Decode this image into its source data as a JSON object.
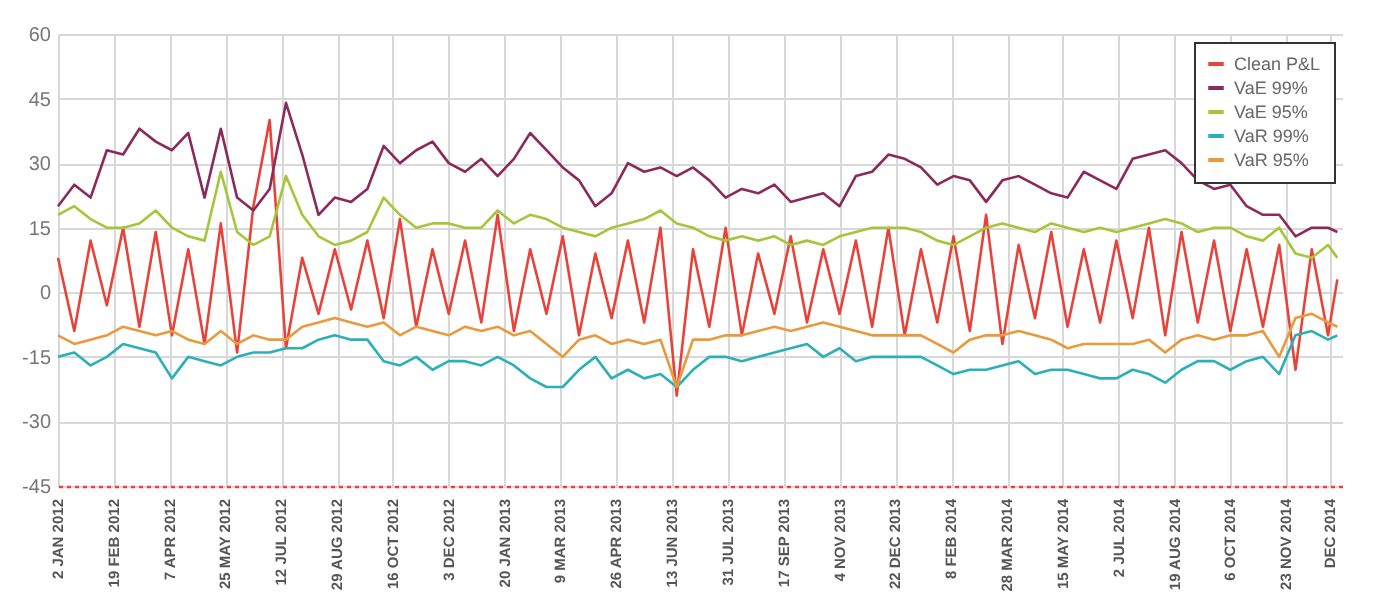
{
  "chart_data": {
    "type": "line",
    "x": [
      "2012-01-02",
      "2012-01-16",
      "2012-01-30",
      "2012-02-13",
      "2012-02-27",
      "2012-03-12",
      "2012-03-26",
      "2012-04-09",
      "2012-04-23",
      "2012-05-07",
      "2012-05-21",
      "2012-06-04",
      "2012-06-18",
      "2012-07-02",
      "2012-07-16",
      "2012-07-30",
      "2012-08-13",
      "2012-08-27",
      "2012-09-10",
      "2012-09-24",
      "2012-10-08",
      "2012-10-22",
      "2012-11-05",
      "2012-11-19",
      "2012-12-03",
      "2012-12-17",
      "2012-12-31",
      "2013-01-14",
      "2013-01-28",
      "2013-02-11",
      "2013-02-25",
      "2013-03-11",
      "2013-03-25",
      "2013-04-08",
      "2013-04-22",
      "2013-05-06",
      "2013-05-20",
      "2013-06-03",
      "2013-06-17",
      "2013-07-01",
      "2013-07-15",
      "2013-07-29",
      "2013-08-12",
      "2013-08-26",
      "2013-09-09",
      "2013-09-23",
      "2013-10-07",
      "2013-10-21",
      "2013-11-04",
      "2013-11-18",
      "2013-12-02",
      "2013-12-16",
      "2013-12-30",
      "2014-01-13",
      "2014-01-27",
      "2014-02-10",
      "2014-02-24",
      "2014-03-10",
      "2014-03-24",
      "2014-04-07",
      "2014-04-21",
      "2014-05-05",
      "2014-05-19",
      "2014-06-02",
      "2014-06-16",
      "2014-06-30",
      "2014-07-14",
      "2014-07-28",
      "2014-08-11",
      "2014-08-25",
      "2014-09-08",
      "2014-09-22",
      "2014-10-06",
      "2014-10-20",
      "2014-11-03",
      "2014-11-17",
      "2014-12-01",
      "2014-12-15",
      "2014-12-29",
      "2015-01-06"
    ],
    "series": [
      {
        "name": "Clean P&L",
        "color": "#e8433a",
        "values": [
          8,
          -9,
          12,
          -3,
          15,
          -8,
          14,
          -10,
          10,
          -12,
          16,
          -14,
          20,
          40,
          -13,
          8,
          -5,
          10,
          -4,
          12,
          -6,
          17,
          -8,
          10,
          -5,
          12,
          -7,
          18,
          -9,
          10,
          -5,
          13,
          -10,
          9,
          -6,
          12,
          -7,
          15,
          -24,
          10,
          -8,
          15,
          -10,
          9,
          -5,
          13,
          -7,
          10,
          -5,
          12,
          -8,
          15,
          -10,
          10,
          -7,
          13,
          -9,
          18,
          -12,
          11,
          -6,
          14,
          -8,
          10,
          -7,
          12,
          -6,
          15,
          -10,
          14,
          -7,
          12,
          -9,
          10,
          -8,
          11,
          -18,
          10,
          -10,
          3
        ]
      },
      {
        "name": "VaE 99%",
        "color": "#8b2a5a",
        "values": [
          20,
          25,
          22,
          33,
          32,
          38,
          35,
          33,
          37,
          22,
          38,
          22,
          19,
          24,
          44,
          32,
          18,
          22,
          21,
          24,
          34,
          30,
          33,
          35,
          30,
          28,
          31,
          27,
          31,
          37,
          33,
          29,
          26,
          20,
          23,
          30,
          28,
          29,
          27,
          29,
          26,
          22,
          24,
          23,
          25,
          21,
          22,
          23,
          20,
          27,
          28,
          32,
          31,
          29,
          25,
          27,
          26,
          21,
          26,
          27,
          25,
          23,
          22,
          28,
          26,
          24,
          31,
          32,
          33,
          30,
          26,
          24,
          25,
          20,
          18,
          18,
          13,
          15,
          15,
          14
        ]
      },
      {
        "name": "VaE 95%",
        "color": "#a4c639",
        "values": [
          18,
          20,
          17,
          15,
          15,
          16,
          19,
          15,
          13,
          12,
          28,
          14,
          11,
          13,
          27,
          18,
          13,
          11,
          12,
          14,
          22,
          18,
          15,
          16,
          16,
          15,
          15,
          19,
          16,
          18,
          17,
          15,
          14,
          13,
          15,
          16,
          17,
          19,
          16,
          15,
          13,
          12,
          13,
          12,
          13,
          11,
          12,
          11,
          13,
          14,
          15,
          15,
          15,
          14,
          12,
          11,
          13,
          15,
          16,
          15,
          14,
          16,
          15,
          14,
          15,
          14,
          15,
          16,
          17,
          16,
          14,
          15,
          15,
          13,
          12,
          15,
          9,
          8,
          11,
          8
        ]
      },
      {
        "name": "VaR 99%",
        "color": "#2bb0b8",
        "values": [
          -15,
          -14,
          -17,
          -15,
          -12,
          -13,
          -14,
          -20,
          -15,
          -16,
          -17,
          -15,
          -14,
          -14,
          -13,
          -13,
          -11,
          -10,
          -11,
          -11,
          -16,
          -17,
          -15,
          -18,
          -16,
          -16,
          -17,
          -15,
          -17,
          -20,
          -22,
          -22,
          -18,
          -15,
          -20,
          -18,
          -20,
          -19,
          -22,
          -18,
          -15,
          -15,
          -16,
          -15,
          -14,
          -13,
          -12,
          -15,
          -13,
          -16,
          -15,
          -15,
          -15,
          -15,
          -17,
          -19,
          -18,
          -18,
          -17,
          -16,
          -19,
          -18,
          -18,
          -19,
          -20,
          -20,
          -18,
          -19,
          -21,
          -18,
          -16,
          -16,
          -18,
          -16,
          -15,
          -19,
          -10,
          -9,
          -11,
          -10
        ]
      },
      {
        "name": "VaR 95%",
        "color": "#e89a3c",
        "values": [
          -10,
          -12,
          -11,
          -10,
          -8,
          -9,
          -10,
          -9,
          -11,
          -12,
          -9,
          -12,
          -10,
          -11,
          -11,
          -8,
          -7,
          -6,
          -7,
          -8,
          -7,
          -10,
          -8,
          -9,
          -10,
          -8,
          -9,
          -8,
          -10,
          -9,
          -12,
          -15,
          -11,
          -10,
          -12,
          -11,
          -12,
          -11,
          -22,
          -11,
          -11,
          -10,
          -10,
          -9,
          -8,
          -9,
          -8,
          -7,
          -8,
          -9,
          -10,
          -10,
          -10,
          -10,
          -12,
          -14,
          -11,
          -10,
          -10,
          -9,
          -10,
          -11,
          -13,
          -12,
          -12,
          -12,
          -12,
          -11,
          -14,
          -11,
          -10,
          -11,
          -10,
          -10,
          -9,
          -15,
          -6,
          -5,
          -7,
          -8
        ]
      }
    ],
    "xlim": [
      "2012-01-02",
      "2015-01-10"
    ],
    "xticks": [
      {
        "value": "2012-01-02",
        "label": "2 JAN 2012"
      },
      {
        "value": "2012-02-19",
        "label": "19 FEB 2012"
      },
      {
        "value": "2012-04-07",
        "label": "7 APR 2012"
      },
      {
        "value": "2012-05-25",
        "label": "25 MAY 2012"
      },
      {
        "value": "2012-07-12",
        "label": "12 JUL 2012"
      },
      {
        "value": "2012-08-29",
        "label": "29 AUG 2012"
      },
      {
        "value": "2012-10-16",
        "label": "16 OCT 2012"
      },
      {
        "value": "2012-12-03",
        "label": "3 DEC 2012"
      },
      {
        "value": "2013-01-20",
        "label": "20 JAN 2013"
      },
      {
        "value": "2013-03-09",
        "label": "9 MAR 2013"
      },
      {
        "value": "2013-04-26",
        "label": "26 APR 2013"
      },
      {
        "value": "2013-06-13",
        "label": "13 JUN 2013"
      },
      {
        "value": "2013-07-31",
        "label": "31 JUL 2013"
      },
      {
        "value": "2013-09-17",
        "label": "17 SEP 2013"
      },
      {
        "value": "2013-11-04",
        "label": "4 NOV 2013"
      },
      {
        "value": "2013-12-22",
        "label": "22 DEC 2013"
      },
      {
        "value": "2014-02-08",
        "label": "8 FEB 2014"
      },
      {
        "value": "2014-03-28",
        "label": "28 MAR 2014"
      },
      {
        "value": "2014-05-15",
        "label": "15 MAY 2014"
      },
      {
        "value": "2014-07-02",
        "label": "2 JUL 2014"
      },
      {
        "value": "2014-08-19",
        "label": "19 AUG 2014"
      },
      {
        "value": "2014-10-06",
        "label": "6 OCT 2014"
      },
      {
        "value": "2014-11-23",
        "label": "23 NOV 2014"
      },
      {
        "value": "2014-12-31",
        "label": "DEC 2014"
      }
    ],
    "ylim": [
      -45,
      60
    ],
    "yticks": [
      -45,
      -30,
      -15,
      0,
      15,
      30,
      45,
      60
    ],
    "grid": true,
    "legend": "top right",
    "marker": "none",
    "line_style": "solid"
  }
}
